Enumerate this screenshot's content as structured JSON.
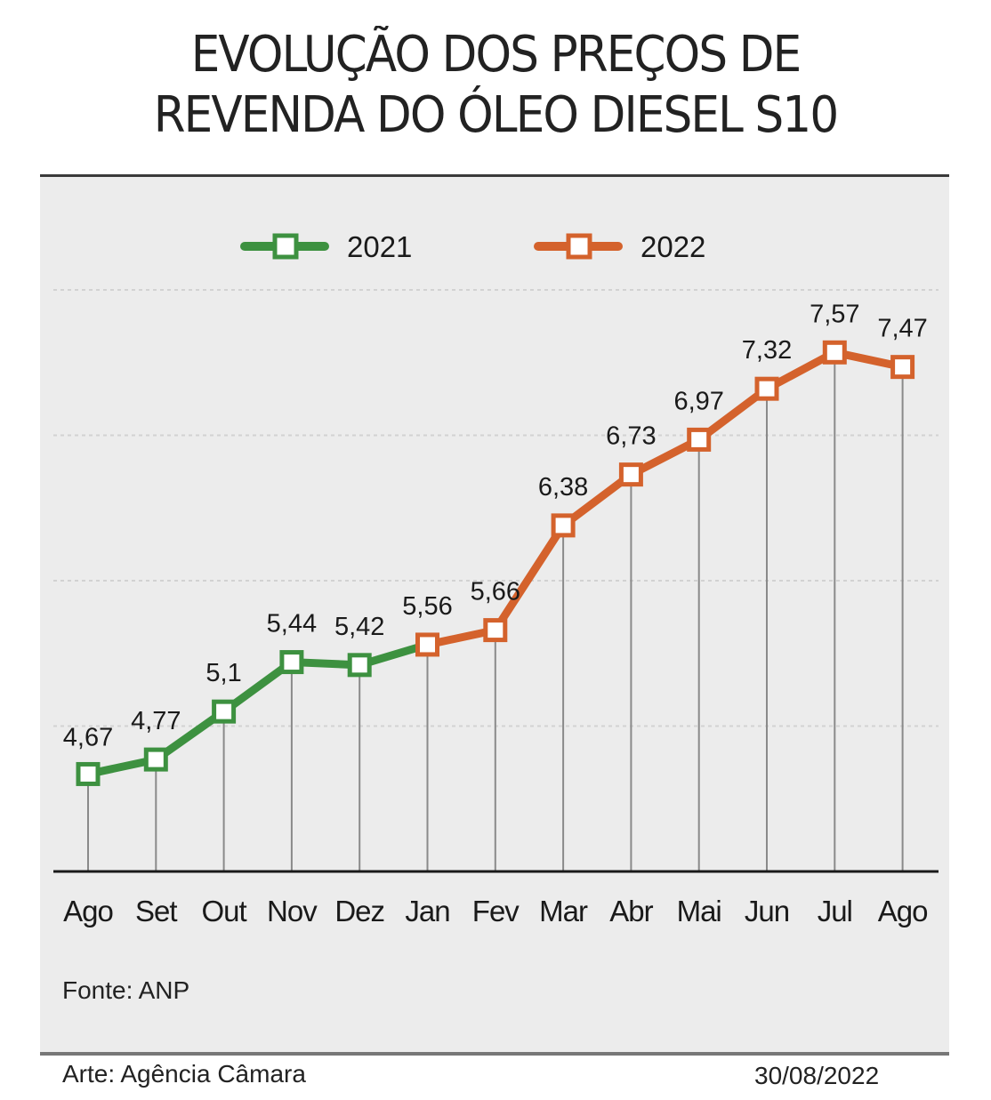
{
  "title_line1": "EVOLUÇÃO DOS PREÇOS DE",
  "title_line2": "REVENDA DO ÓLEO DIESEL S10",
  "source": "Fonte: ANP",
  "credit": "Arte: Agência Câmara",
  "date": "30/08/2022",
  "colors": {
    "series_2021": "#3d9140",
    "series_2022": "#d4622c",
    "panel_bg": "#ececec"
  },
  "chart_data": {
    "type": "line",
    "title": "EVOLUÇÃO DOS PREÇOS DE REVENDA DO ÓLEO DIESEL S10",
    "xlabel": "",
    "ylabel": "",
    "categories": [
      "Ago",
      "Set",
      "Out",
      "Nov",
      "Dez",
      "Jan",
      "Fev",
      "Mar",
      "Abr",
      "Mai",
      "Jun",
      "Jul",
      "Ago"
    ],
    "values": [
      4.67,
      4.77,
      5.1,
      5.44,
      5.42,
      5.56,
      5.66,
      6.38,
      6.73,
      6.97,
      7.32,
      7.57,
      7.47
    ],
    "value_labels": [
      "4,67",
      "4,77",
      "5,1",
      "5,44",
      "5,42",
      "5,56",
      "5,66",
      "6,38",
      "6,73",
      "6,97",
      "7,32",
      "7,57",
      "7,47"
    ],
    "series": [
      {
        "name": "2021",
        "color": "#3d9140",
        "start_index": 0,
        "end_index": 5
      },
      {
        "name": "2022",
        "color": "#d4622c",
        "start_index": 5,
        "end_index": 12
      }
    ],
    "ylim": [
      4,
      8
    ],
    "gridlines": [
      5,
      6,
      7,
      8
    ],
    "grid": true,
    "drop_lines": true,
    "legend": {
      "position": "top-center",
      "entries": [
        "2021",
        "2022"
      ]
    }
  }
}
